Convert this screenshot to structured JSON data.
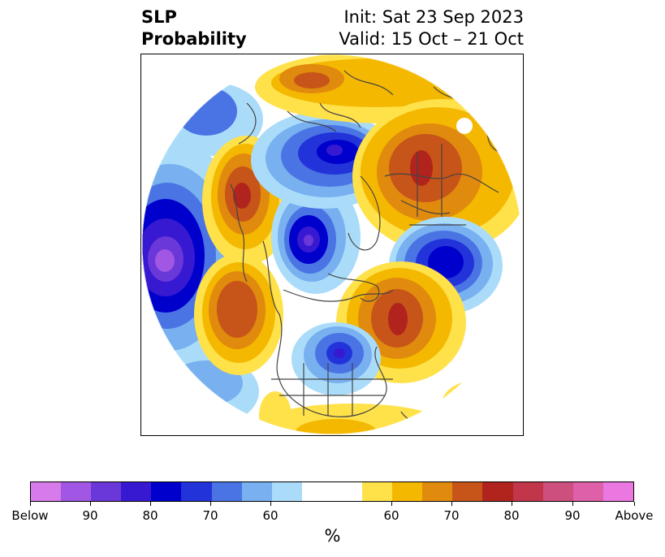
{
  "header": {
    "variable": "SLP",
    "product": "Probability",
    "init": "Init: Sat 23 Sep 2023",
    "valid": "Valid: 15 Oct – 21 Oct"
  },
  "colorbar": {
    "label": "%",
    "colors": [
      "#d77aea",
      "#a157e4",
      "#6a37d8",
      "#3619d1",
      "#0000cc",
      "#2234d9",
      "#4a74e4",
      "#78b0f0",
      "#aadcfa",
      "#ffffff",
      "#ffe14a",
      "#f4b800",
      "#e08a0e",
      "#c75418",
      "#b1241e",
      "#c1364a",
      "#cd4f7e",
      "#dd60a8",
      "#ea78e0"
    ],
    "ticks": [
      "Below",
      "90",
      "80",
      "70",
      "60",
      "60",
      "70",
      "80",
      "90",
      "Above"
    ]
  },
  "map": {
    "anomalies": [
      {
        "name": "pacific-low",
        "sign": "below",
        "max": 85
      },
      {
        "name": "arctic-low",
        "sign": "below",
        "max": 80
      },
      {
        "name": "greenland-low",
        "sign": "below",
        "max": 80
      },
      {
        "name": "great-lakes-low",
        "sign": "below",
        "max": 75
      },
      {
        "name": "north-atlantic-low",
        "sign": "below",
        "max": 80
      },
      {
        "name": "eurasia-high",
        "sign": "above",
        "max": 80
      },
      {
        "name": "siberia-high",
        "sign": "above",
        "max": 80
      },
      {
        "name": "east-pacific-high",
        "sign": "above",
        "max": 70
      },
      {
        "name": "western-atlantic-high",
        "sign": "above",
        "max": 80
      }
    ]
  }
}
